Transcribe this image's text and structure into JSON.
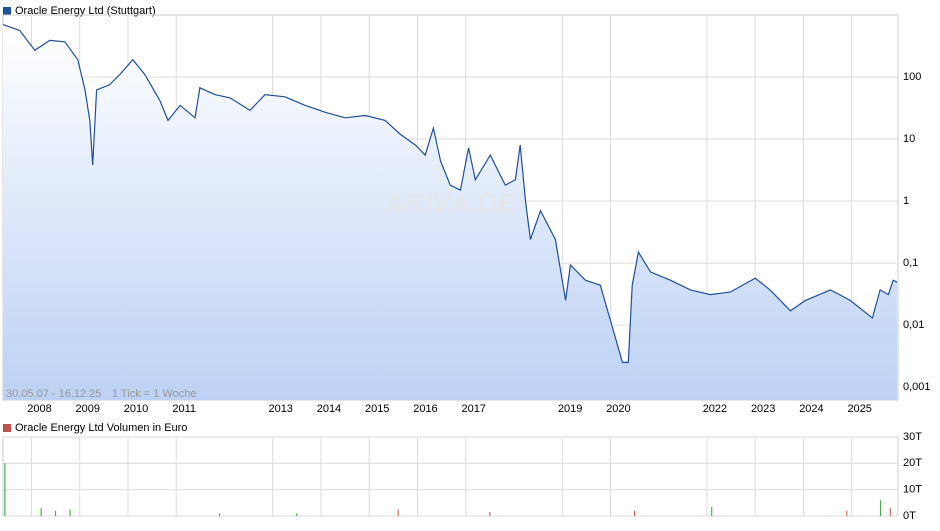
{
  "chart_data": [
    {
      "type": "line",
      "legend": "Oracle Energy Ltd (Stuttgart)",
      "range_label": "30.05.07 - 16.12.25",
      "tick_label": "1 Tick = 1 Woche",
      "watermark": "ARIVA.DE",
      "log_scale": true,
      "grid": true,
      "color": "#1f4e9c",
      "xlim": [
        2007.41,
        2025.96
      ],
      "xticks": [
        {
          "value": 2008,
          "label": "2008"
        },
        {
          "value": 2009,
          "label": "2009"
        },
        {
          "value": 2010,
          "label": "2010"
        },
        {
          "value": 2011,
          "label": "2011"
        },
        {
          "value": 2013,
          "label": "2013"
        },
        {
          "value": 2014,
          "label": "2014"
        },
        {
          "value": 2015,
          "label": "2015"
        },
        {
          "value": 2016,
          "label": "2016"
        },
        {
          "value": 2017,
          "label": "2017"
        },
        {
          "value": 2019,
          "label": "2019"
        },
        {
          "value": 2020,
          "label": "2020"
        },
        {
          "value": 2022,
          "label": "2022"
        },
        {
          "value": 2023,
          "label": "2023"
        },
        {
          "value": 2024,
          "label": "2024"
        },
        {
          "value": 2025,
          "label": "2025"
        }
      ],
      "ylim": [
        0.00062,
        1000
      ],
      "yticks": [
        {
          "value": 0.001,
          "label": "0,001"
        },
        {
          "value": 0.01,
          "label": "0,01"
        },
        {
          "value": 0.1,
          "label": "0,1"
        },
        1,
        10,
        100
      ],
      "x": [
        2007.41,
        2007.76,
        2008.07,
        2008.38,
        2008.69,
        2008.96,
        2009.11,
        2009.21,
        2009.27,
        2009.35,
        2009.62,
        2009.83,
        2010.1,
        2010.35,
        2010.66,
        2010.83,
        2011.08,
        2011.39,
        2011.49,
        2011.8,
        2012.12,
        2012.53,
        2012.84,
        2013.25,
        2013.67,
        2014.09,
        2014.5,
        2014.92,
        2015.33,
        2015.64,
        2015.96,
        2016.16,
        2016.33,
        2016.48,
        2016.68,
        2016.89,
        2017.06,
        2017.2,
        2017.51,
        2017.82,
        2018.03,
        2018.13,
        2018.24,
        2018.34,
        2018.55,
        2018.86,
        2019.07,
        2019.17,
        2019.48,
        2019.79,
        2020.25,
        2020.37,
        2020.45,
        2020.58,
        2020.83,
        2021.24,
        2021.66,
        2022.07,
        2022.48,
        2023.0,
        2023.31,
        2023.73,
        2024.04,
        2024.56,
        2024.97,
        2025.43,
        2025.59,
        2025.76,
        2025.86,
        2025.94
      ],
      "values": [
        700,
        560,
        270,
        390,
        370,
        190,
        62,
        20,
        3.8,
        62,
        75,
        110,
        190,
        110,
        42,
        20,
        35,
        22,
        67,
        52,
        46,
        29,
        52,
        48,
        35,
        27,
        22,
        24,
        20,
        12,
        8,
        5.5,
        15,
        4.4,
        1.8,
        1.5,
        7.2,
        2.2,
        5.5,
        1.8,
        2.2,
        8,
        1,
        0.24,
        0.7,
        0.24,
        0.025,
        0.093,
        0.053,
        0.044,
        0.0025,
        0.0025,
        0.044,
        0.15,
        0.072,
        0.053,
        0.037,
        0.031,
        0.034,
        0.057,
        0.037,
        0.017,
        0.025,
        0.037,
        0.025,
        0.013,
        0.037,
        0.031,
        0.053,
        0.049
      ]
    },
    {
      "type": "bar",
      "legend": "Oracle Energy Ltd Volumen in Euro",
      "color": "#c0504d",
      "ylim": [
        0,
        30
      ],
      "yticks": [
        {
          "value": 0,
          "label": "0T"
        },
        {
          "value": 10,
          "label": "10T"
        },
        {
          "value": 20,
          "label": "20T"
        },
        {
          "value": 30,
          "label": "30T"
        }
      ],
      "x": [
        2007.45,
        2008.2,
        2008.5,
        2008.8,
        2011.9,
        2013.5,
        2015.6,
        2017.5,
        2020.5,
        2022.1,
        2024.9,
        2025.6,
        2025.8
      ],
      "values": [
        20,
        3,
        2,
        2.5,
        1,
        1,
        2.5,
        1.5,
        2,
        3.5,
        2,
        6,
        3
      ],
      "bar_colors": [
        "#2ca02c",
        "#2ca02c",
        "#c0504d",
        "#2ca02c",
        "#c0504d",
        "#2ca02c",
        "#c0504d",
        "#c0504d",
        "#c0504d",
        "#2ca02c",
        "#c0504d",
        "#2ca02c",
        "#c0504d"
      ]
    }
  ]
}
